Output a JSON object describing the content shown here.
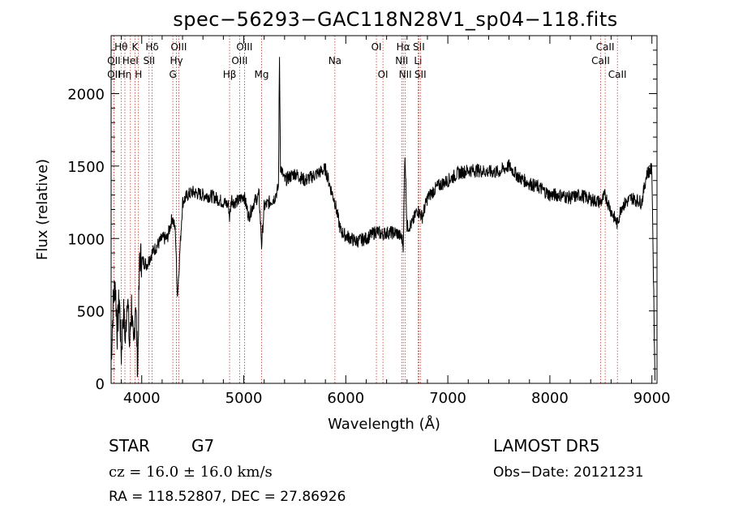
{
  "chart_data": {
    "type": "line",
    "title": "spec−56293−GAC118N28V1_sp04−118.fits",
    "xlabel": "Wavelength (Å)",
    "ylabel": "Flux (relative)",
    "xlim": [
      3700,
      9050
    ],
    "ylim": [
      0,
      2400
    ],
    "xticks": [
      4000,
      5000,
      6000,
      7000,
      8000,
      9000
    ],
    "yticks": [
      0,
      500,
      1000,
      1500,
      2000
    ],
    "grid": false,
    "series": [
      {
        "x": [
          3700,
          3720,
          3740,
          3760,
          3780,
          3800,
          3820,
          3840,
          3860,
          3880,
          3900,
          3920,
          3940,
          3960,
          3980,
          4000,
          4050,
          4100,
          4150,
          4200,
          4250,
          4300,
          4330,
          4350,
          4400,
          4450,
          4500,
          4600,
          4700,
          4800,
          4850,
          4861,
          4880,
          4900,
          4950,
          5000,
          5050,
          5100,
          5150,
          5175,
          5200,
          5250,
          5300,
          5340,
          5350,
          5360,
          5400,
          5500,
          5600,
          5700,
          5800,
          5850,
          5890,
          5950,
          6000,
          6100,
          6200,
          6300,
          6350,
          6400,
          6500,
          6550,
          6563,
          6580,
          6600,
          6650,
          6700,
          6750,
          6800,
          6900,
          7000,
          7100,
          7200,
          7300,
          7400,
          7500,
          7600,
          7700,
          7800,
          7900,
          8000,
          8100,
          8200,
          8300,
          8400,
          8500,
          8542,
          8600,
          8662,
          8700,
          8800,
          8900,
          8950,
          9000,
          9030
        ],
        "y": [
          150,
          550,
          700,
          350,
          600,
          200,
          500,
          300,
          650,
          250,
          550,
          200,
          600,
          100,
          880,
          850,
          820,
          900,
          950,
          1000,
          1000,
          1150,
          1050,
          600,
          1250,
          1300,
          1320,
          1300,
          1290,
          1250,
          1230,
          1140,
          1280,
          1250,
          1260,
          1300,
          1150,
          1250,
          1300,
          950,
          1220,
          1250,
          1280,
          1350,
          2250,
          1500,
          1400,
          1450,
          1400,
          1440,
          1480,
          1350,
          1260,
          1050,
          1020,
          980,
          1000,
          1050,
          1030,
          1040,
          1040,
          1000,
          950,
          1600,
          1080,
          1100,
          1200,
          1150,
          1280,
          1360,
          1400,
          1450,
          1470,
          1470,
          1460,
          1460,
          1500,
          1420,
          1380,
          1350,
          1300,
          1300,
          1280,
          1300,
          1270,
          1250,
          1300,
          1190,
          1100,
          1220,
          1280,
          1250,
          1450,
          1480,
          20
        ]
      }
    ],
    "lines": [
      {
        "name": "Hθ",
        "x": 3798,
        "row": 1
      },
      {
        "name": "OII",
        "x": 3727,
        "row": 2
      },
      {
        "name": "OII",
        "x": 3727,
        "row": 3
      },
      {
        "name": "Hη",
        "x": 3835,
        "row": 3
      },
      {
        "name": "K",
        "x": 3934,
        "row": 1
      },
      {
        "name": "HeI",
        "x": 3889,
        "row": 2
      },
      {
        "name": "H",
        "x": 3968,
        "row": 3
      },
      {
        "name": "Hδ",
        "x": 4102,
        "row": 1
      },
      {
        "name": "SII",
        "x": 4072,
        "row": 2
      },
      {
        "name": "OIII",
        "x": 4363,
        "row": 1
      },
      {
        "name": "Hγ",
        "x": 4340,
        "row": 2
      },
      {
        "name": "G",
        "x": 4305,
        "row": 3
      },
      {
        "name": "OIII",
        "x": 5007,
        "row": 1
      },
      {
        "name": "OIII",
        "x": 4959,
        "row": 2
      },
      {
        "name": "Hβ",
        "x": 4861,
        "row": 3
      },
      {
        "name": "Mg",
        "x": 5175,
        "row": 3
      },
      {
        "name": "Na",
        "x": 5893,
        "row": 2
      },
      {
        "name": "OI",
        "x": 6300,
        "row": 1
      },
      {
        "name": "OI",
        "x": 6364,
        "row": 3
      },
      {
        "name": "Hα",
        "x": 6563,
        "row": 1
      },
      {
        "name": "SII",
        "x": 6716,
        "row": 1
      },
      {
        "name": "NII",
        "x": 6548,
        "row": 2
      },
      {
        "name": "Li",
        "x": 6708,
        "row": 2
      },
      {
        "name": "NII",
        "x": 6583,
        "row": 3
      },
      {
        "name": "SII",
        "x": 6731,
        "row": 3
      },
      {
        "name": "CaII",
        "x": 8542,
        "row": 1
      },
      {
        "name": "CaII",
        "x": 8498,
        "row": 2
      },
      {
        "name": "CaII",
        "x": 8662,
        "row": 3
      }
    ]
  },
  "info": {
    "class_label": "STAR",
    "subclass": "G7",
    "survey": "LAMOST DR5",
    "cz": "cz = 16.0 ± 16.0 km/s",
    "obs_date": "Obs−Date: 20121231",
    "coords": "RA = 118.52807, DEC =  27.86926"
  }
}
